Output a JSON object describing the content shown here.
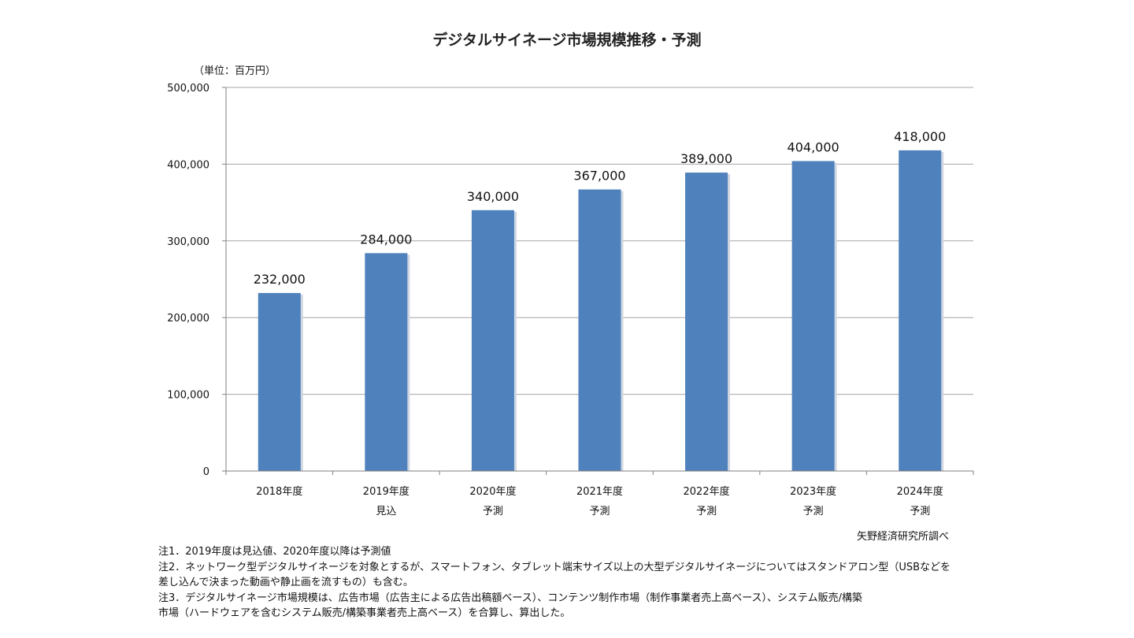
{
  "chart_data": {
    "type": "bar",
    "title": "デジタルサイネージ市場規模推移・予測",
    "unit_label": "（単位：百万円）",
    "categories": [
      [
        "2018年度"
      ],
      [
        "2019年度",
        "見込"
      ],
      [
        "2020年度",
        "予測"
      ],
      [
        "2021年度",
        "予測"
      ],
      [
        "2022年度",
        "予測"
      ],
      [
        "2023年度",
        "予測"
      ],
      [
        "2024年度",
        "予測"
      ]
    ],
    "values": [
      232000,
      284000,
      340000,
      367000,
      389000,
      404000,
      418000
    ],
    "value_labels": [
      "232,000",
      "284,000",
      "340,000",
      "367,000",
      "389,000",
      "404,000",
      "418,000"
    ],
    "ylim": [
      0,
      500000
    ],
    "yticks": [
      0,
      100000,
      200000,
      300000,
      400000,
      500000
    ],
    "ytick_labels": [
      "0",
      "100,000",
      "200,000",
      "300,000",
      "400,000",
      "500,000"
    ],
    "grid": true,
    "bar_color": "#4F81BD",
    "grid_color": "#a6a6a6",
    "source": "矢野経済研究所調べ"
  },
  "notes": [
    "注1．2019年度は見込値、2020年度以降は予測値",
    "注2．ネットワーク型デジタルサイネージを対象とするが、スマートフォン、タブレット端末サイズ以上の大型デジタルサイネージについてはスタンドアロン型（USBなどを",
    "差し込んで決まった動画や静止画を流すもの）も含む。",
    "注3．デジタルサイネージ市場規模は、広告市場（広告主による広告出稿額ベース）、コンテンツ制作市場（制作事業者売上高ベース）、システム販売/構築",
    "市場（ハードウェアを含むシステム販売/構築事業者売上高ベース）を合算し、算出した。"
  ]
}
